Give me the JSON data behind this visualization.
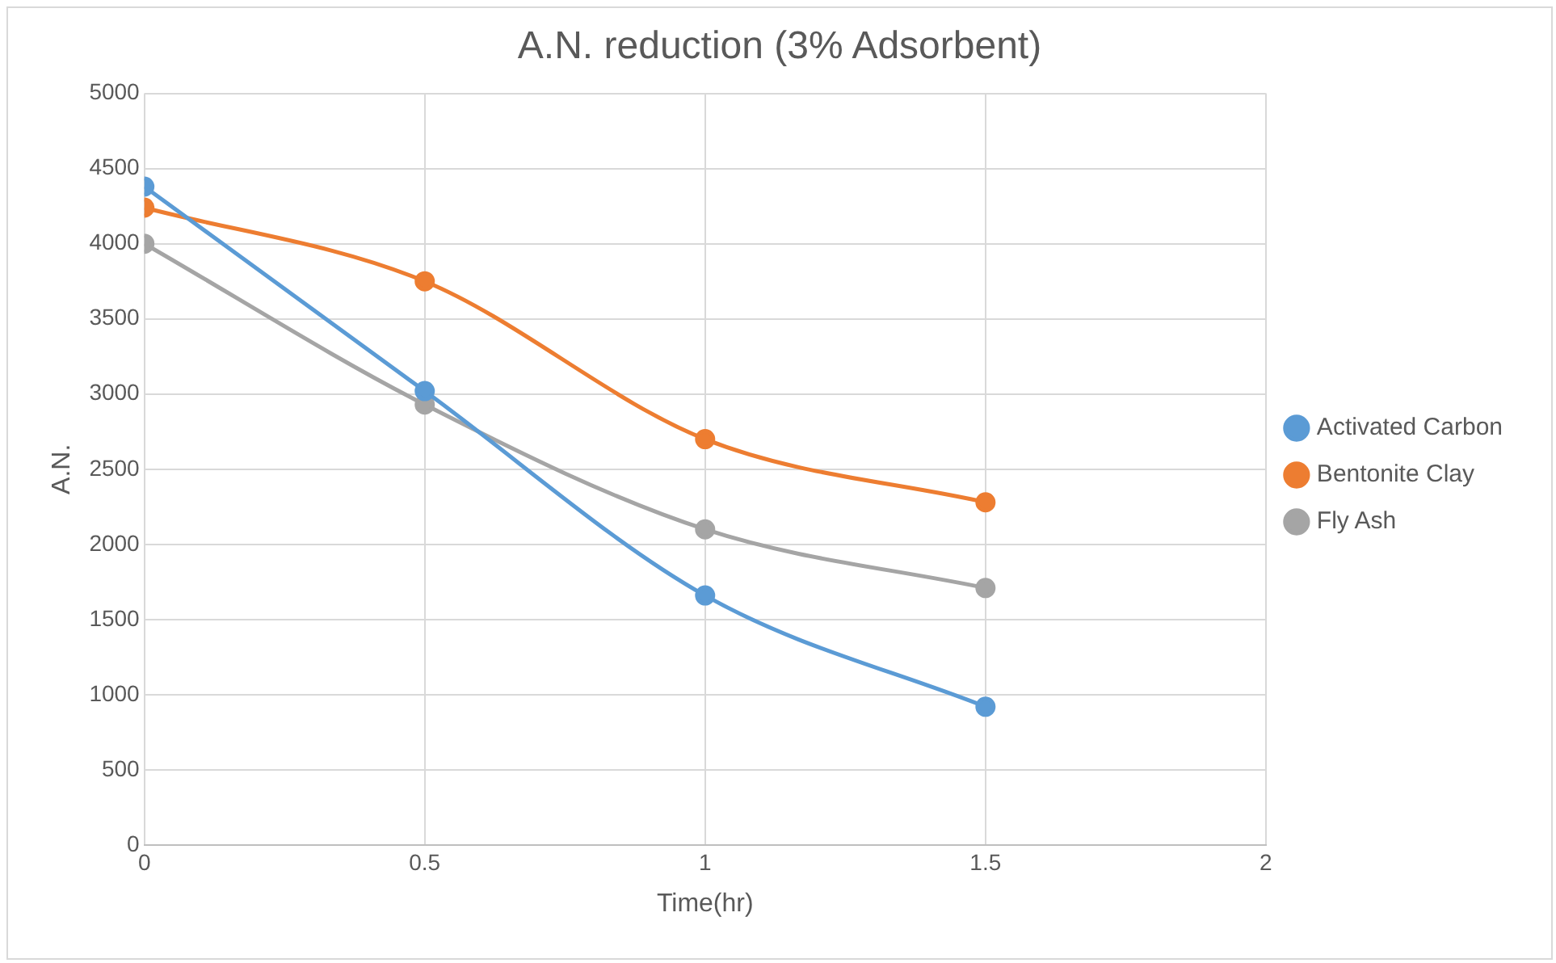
{
  "chart_data": {
    "type": "line",
    "title": "A.N. reduction (3% Adsorbent)",
    "xlabel": "Time(hr)",
    "ylabel": "A.N.",
    "x": [
      0,
      0.5,
      1,
      1.5
    ],
    "series": [
      {
        "name": "Activated Carbon",
        "color": "#5b9bd5",
        "values": [
          4380,
          3020,
          1660,
          920
        ]
      },
      {
        "name": "Bentonite Clay",
        "color": "#ed7d31",
        "values": [
          4240,
          3750,
          2700,
          2280
        ]
      },
      {
        "name": "Fly Ash",
        "color": "#a5a5a5",
        "values": [
          4000,
          2930,
          2100,
          1710
        ]
      }
    ],
    "xlim": [
      0,
      2
    ],
    "xticks": [
      0,
      0.5,
      1,
      1.5,
      2
    ],
    "ylim": [
      0,
      5000
    ],
    "yticks": [
      0,
      500,
      1000,
      1500,
      2000,
      2500,
      3000,
      3500,
      4000,
      4500,
      5000
    ],
    "grid": true,
    "legend": "right",
    "marker": "circle",
    "line_style": "solid"
  }
}
